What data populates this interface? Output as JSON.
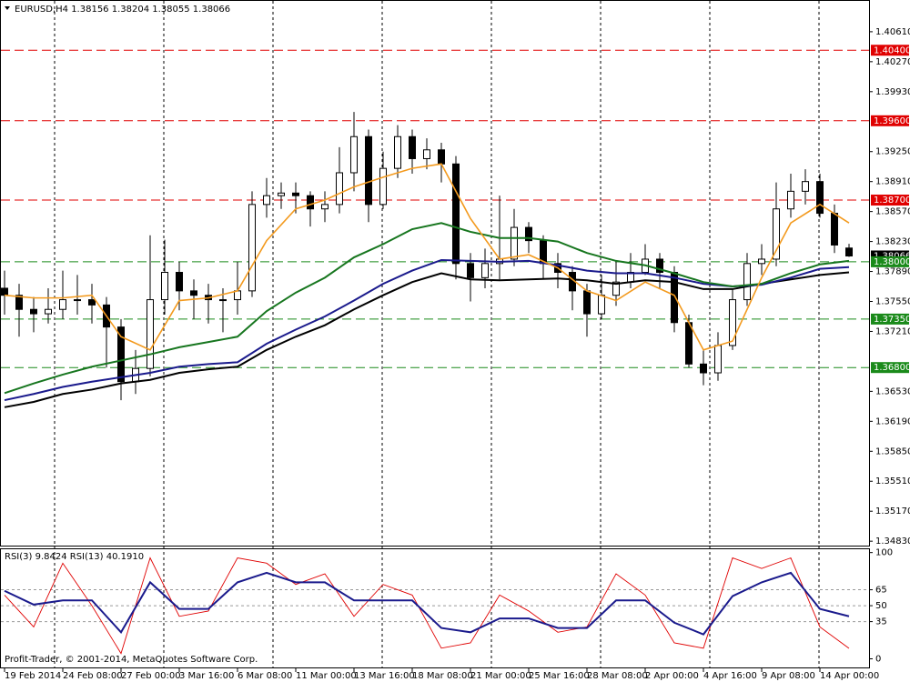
{
  "chart_data": [
    {
      "type": "candlestick",
      "title": "EURUSD,H4  1.38156 1.38204 1.38055 1.38066",
      "candles": [
        [
          1.377,
          1.379,
          1.374,
          1.3762
        ],
        [
          1.3762,
          1.3775,
          1.3715,
          1.3746
        ],
        [
          1.3746,
          1.376,
          1.372,
          1.3741
        ],
        [
          1.3741,
          1.377,
          1.373,
          1.3746
        ],
        [
          1.3746,
          1.379,
          1.3735,
          1.3757
        ],
        [
          1.3757,
          1.3785,
          1.374,
          1.3757
        ],
        [
          1.3757,
          1.3775,
          1.373,
          1.3751
        ],
        [
          1.3751,
          1.376,
          1.368,
          1.3726
        ],
        [
          1.3726,
          1.3735,
          1.3643,
          1.3664
        ],
        [
          1.3664,
          1.37,
          1.365,
          1.3679
        ],
        [
          1.3679,
          1.383,
          1.367,
          1.3757
        ],
        [
          1.3757,
          1.3825,
          1.374,
          1.3788
        ],
        [
          1.3788,
          1.38,
          1.3745,
          1.3767
        ],
        [
          1.3767,
          1.378,
          1.3735,
          1.3762
        ],
        [
          1.3762,
          1.3775,
          1.373,
          1.3757
        ],
        [
          1.3757,
          1.377,
          1.372,
          1.3757
        ],
        [
          1.3757,
          1.38,
          1.374,
          1.3767
        ],
        [
          1.3767,
          1.388,
          1.376,
          1.3865
        ],
        [
          1.3865,
          1.3895,
          1.385,
          1.3875
        ],
        [
          1.3875,
          1.389,
          1.386,
          1.3878
        ],
        [
          1.3878,
          1.389,
          1.3855,
          1.3875
        ],
        [
          1.3875,
          1.388,
          1.384,
          1.386
        ],
        [
          1.386,
          1.388,
          1.3845,
          1.3865
        ],
        [
          1.3865,
          1.393,
          1.3855,
          1.3901
        ],
        [
          1.3901,
          1.397,
          1.388,
          1.3942
        ],
        [
          1.3942,
          1.395,
          1.3845,
          1.3865
        ],
        [
          1.3865,
          1.3925,
          1.386,
          1.3906
        ],
        [
          1.3906,
          1.3955,
          1.3895,
          1.3942
        ],
        [
          1.3942,
          1.395,
          1.39,
          1.3917
        ],
        [
          1.3917,
          1.394,
          1.3905,
          1.3927
        ],
        [
          1.3927,
          1.3935,
          1.389,
          1.3911
        ],
        [
          1.3911,
          1.392,
          1.378,
          1.3798
        ],
        [
          1.3798,
          1.381,
          1.3755,
          1.3782
        ],
        [
          1.3782,
          1.3815,
          1.377,
          1.3798
        ],
        [
          1.3798,
          1.3875,
          1.378,
          1.3803
        ],
        [
          1.3803,
          1.386,
          1.3795,
          1.3839
        ],
        [
          1.3839,
          1.3845,
          1.381,
          1.3824
        ],
        [
          1.3824,
          1.383,
          1.378,
          1.3798
        ],
        [
          1.3798,
          1.381,
          1.377,
          1.3788
        ],
        [
          1.3788,
          1.3795,
          1.3745,
          1.3767
        ],
        [
          1.3767,
          1.3775,
          1.3715,
          1.3741
        ],
        [
          1.3741,
          1.3785,
          1.3735,
          1.3762
        ],
        [
          1.3762,
          1.38,
          1.375,
          1.3777
        ],
        [
          1.3777,
          1.381,
          1.377,
          1.3788
        ],
        [
          1.3788,
          1.382,
          1.3785,
          1.3803
        ],
        [
          1.3803,
          1.381,
          1.377,
          1.3788
        ],
        [
          1.3788,
          1.3795,
          1.372,
          1.3731
        ],
        [
          1.3731,
          1.374,
          1.368,
          1.3684
        ],
        [
          1.3684,
          1.37,
          1.366,
          1.3674
        ],
        [
          1.3674,
          1.372,
          1.3665,
          1.3705
        ],
        [
          1.3705,
          1.377,
          1.37,
          1.3757
        ],
        [
          1.3757,
          1.381,
          1.375,
          1.3798
        ],
        [
          1.3798,
          1.382,
          1.3785,
          1.3803
        ],
        [
          1.3803,
          1.389,
          1.3795,
          1.386
        ],
        [
          1.386,
          1.39,
          1.385,
          1.388
        ],
        [
          1.388,
          1.3905,
          1.3865,
          1.3891
        ],
        [
          1.3891,
          1.39,
          1.385,
          1.3855
        ],
        [
          1.3855,
          1.3865,
          1.381,
          1.3819
        ],
        [
          1.38156,
          1.38204,
          1.38055,
          1.38066
        ]
      ],
      "up_color": "#ffffff",
      "down_color": "#000000",
      "lines_x": [
        0,
        2,
        4,
        6,
        8,
        10,
        12,
        14,
        16,
        18,
        20,
        22,
        24,
        26,
        28,
        30,
        32,
        34,
        36,
        38,
        40,
        42,
        44,
        46,
        48,
        50,
        52,
        54,
        56,
        58
      ],
      "lines": [
        {
          "color": "#000000",
          "width": 2,
          "values": [
            1.3635,
            1.3641,
            1.365,
            1.3655,
            1.3662,
            1.3666,
            1.3674,
            1.3678,
            1.3681,
            1.37,
            1.3715,
            1.3728,
            1.3746,
            1.3762,
            1.3777,
            1.3787,
            1.378,
            1.3779,
            1.378,
            1.3781,
            1.3779,
            1.3775,
            1.3779,
            1.3777,
            1.3769,
            1.3769,
            1.3775,
            1.378,
            1.3785,
            1.3788
          ]
        },
        {
          "color": "#1a1a8c",
          "width": 2,
          "values": [
            1.3643,
            1.365,
            1.3658,
            1.3664,
            1.3669,
            1.3674,
            1.3681,
            1.3684,
            1.3686,
            1.3707,
            1.3723,
            1.3738,
            1.3756,
            1.3775,
            1.379,
            1.3802,
            1.3801,
            1.38,
            1.3801,
            1.3796,
            1.379,
            1.3787,
            1.3787,
            1.3782,
            1.3775,
            1.3772,
            1.3774,
            1.3782,
            1.3792,
            1.3794
          ]
        },
        {
          "color": "#17761f",
          "width": 2,
          "values": [
            1.3651,
            1.3662,
            1.3672,
            1.3681,
            1.3688,
            1.3695,
            1.3703,
            1.3709,
            1.3715,
            1.3744,
            1.3765,
            1.3782,
            1.3805,
            1.382,
            1.3837,
            1.3844,
            1.3834,
            1.3827,
            1.3827,
            1.3823,
            1.381,
            1.3801,
            1.3796,
            1.3787,
            1.3777,
            1.3772,
            1.3775,
            1.3787,
            1.3797,
            1.3801
          ]
        },
        {
          "color": "#f39a1e",
          "width": 1.6,
          "values": [
            1.3762,
            1.3759,
            1.3759,
            1.3762,
            1.3715,
            1.37,
            1.3756,
            1.3759,
            1.3767,
            1.3824,
            1.386,
            1.387,
            1.3885,
            1.3896,
            1.3906,
            1.3911,
            1.3849,
            1.3803,
            1.3808,
            1.3793,
            1.3767,
            1.3756,
            1.3777,
            1.3762,
            1.37,
            1.371,
            1.3782,
            1.3844,
            1.3865,
            1.3844
          ]
        }
      ],
      "ylim": [
        1.3478,
        1.4097
      ],
      "yticks": [
        {
          "value": 1.4061,
          "label": "1.40610"
        },
        {
          "value": 1.4027,
          "label": "1.40270"
        },
        {
          "value": 1.3993,
          "label": "1.39930"
        },
        {
          "value": 1.3925,
          "label": "1.39250"
        },
        {
          "value": 1.3891,
          "label": "1.38910"
        },
        {
          "value": 1.3857,
          "label": "1.38570"
        },
        {
          "value": 1.3823,
          "label": "1.38230"
        },
        {
          "value": 1.3789,
          "label": "1.37890"
        },
        {
          "value": 1.3755,
          "label": "1.37550"
        },
        {
          "value": 1.3721,
          "label": "1.37210"
        },
        {
          "value": 1.3653,
          "label": "1.36530"
        },
        {
          "value": 1.3619,
          "label": "1.36190"
        },
        {
          "value": 1.3585,
          "label": "1.35850"
        },
        {
          "value": 1.3551,
          "label": "1.35510"
        },
        {
          "value": 1.3517,
          "label": "1.35170"
        },
        {
          "value": 1.3483,
          "label": "1.34830"
        }
      ],
      "last_price": {
        "value": 1.38066,
        "label": "1.38066"
      },
      "hlines": [
        {
          "value": 1.404,
          "label": "1.40400",
          "color": "#e00000"
        },
        {
          "value": 1.396,
          "label": "1.39600",
          "color": "#e00000"
        },
        {
          "value": 1.387,
          "label": "1.38700",
          "color": "#e00000"
        },
        {
          "value": 1.38,
          "label": "1.38000",
          "color": "#1a8a1a"
        },
        {
          "value": 1.3735,
          "label": "1.37350",
          "color": "#1a8a1a"
        },
        {
          "value": 1.368,
          "label": "1.36800",
          "color": "#1a8a1a"
        }
      ],
      "xticks": [
        {
          "value": 0,
          "label": "19 Feb 2014"
        },
        {
          "value": 4,
          "label": "24 Feb 08:00"
        },
        {
          "value": 8,
          "label": "27 Feb 00:00"
        },
        {
          "value": 12,
          "label": "3 Mar 16:00"
        },
        {
          "value": 16,
          "label": "6 Mar 08:00"
        },
        {
          "value": 20,
          "label": "11 Mar 00:00"
        },
        {
          "value": 24,
          "label": "13 Mar 16:00"
        },
        {
          "value": 28,
          "label": "18 Mar 08:00"
        },
        {
          "value": 32,
          "label": "21 Mar 00:00"
        },
        {
          "value": 36,
          "label": "25 Mar 16:00"
        },
        {
          "value": 40,
          "label": "28 Mar 08:00"
        },
        {
          "value": 44,
          "label": "2 Apr 00:00"
        },
        {
          "value": 48,
          "label": "4 Apr 16:00"
        },
        {
          "value": 52,
          "label": "9 Apr 08:00"
        },
        {
          "value": 56,
          "label": "14 Apr 00:00"
        }
      ]
    },
    {
      "type": "line",
      "title": "RSI(3) 9.8424  RSI(13) 40.1910",
      "annotation": "Profit-Trader, © 2001-2014, MetaQuotes Software Corp.",
      "x": [
        0,
        2,
        4,
        6,
        8,
        10,
        12,
        14,
        16,
        18,
        20,
        22,
        24,
        26,
        28,
        30,
        32,
        34,
        36,
        38,
        40,
        42,
        44,
        46,
        48,
        50,
        52,
        54,
        56,
        58
      ],
      "series": [
        {
          "color": "#e00000",
          "width": 0.9,
          "values": [
            60,
            30,
            90,
            50,
            5,
            95,
            40,
            45,
            95,
            90,
            70,
            80,
            40,
            70,
            60,
            10,
            15,
            60,
            45,
            25,
            30,
            80,
            60,
            15,
            10,
            95,
            85,
            95,
            30,
            9.8
          ]
        },
        {
          "color": "#1a1a8c",
          "width": 2,
          "values": [
            64,
            51,
            55,
            55,
            25,
            72,
            47,
            47,
            72,
            81,
            72,
            72,
            55,
            55,
            55,
            29,
            25,
            38,
            38,
            29,
            29,
            55,
            55,
            34,
            23,
            59,
            72,
            81,
            47,
            40
          ]
        }
      ],
      "ylim": [
        -9,
        104
      ],
      "yticks": [
        100,
        65,
        50,
        35,
        0
      ],
      "levels": [
        65,
        50,
        35
      ]
    }
  ]
}
